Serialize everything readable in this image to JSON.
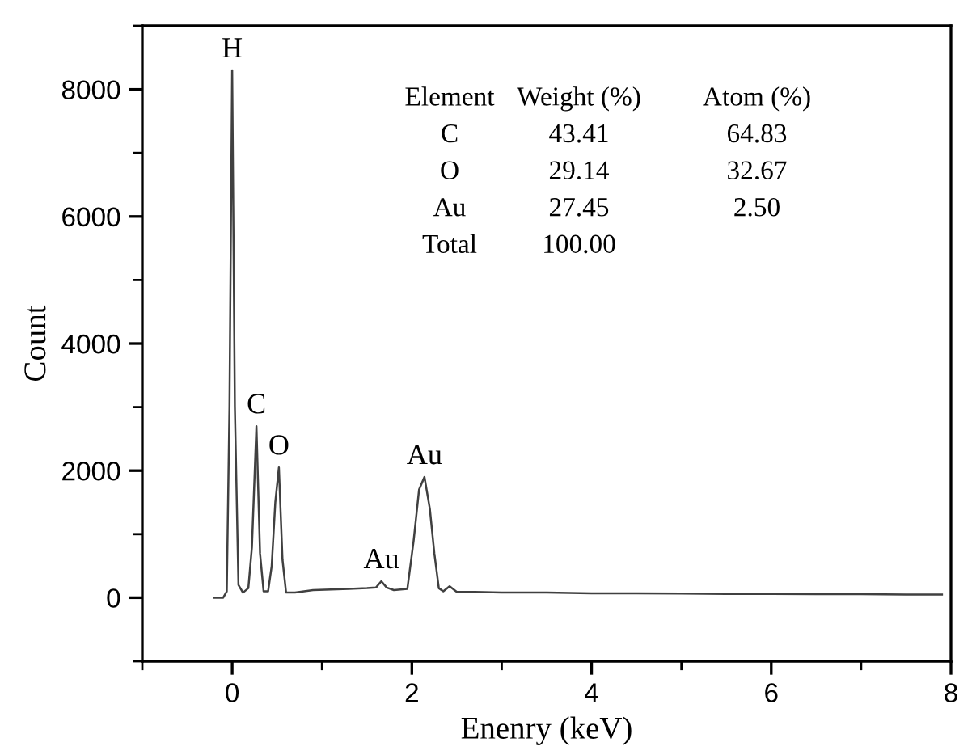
{
  "chart_data": {
    "type": "line",
    "xlabel": "Enenry (keV)",
    "ylabel": "Count",
    "xlim": [
      -1,
      8
    ],
    "ylim": [
      -1000,
      9000
    ],
    "xticks": [
      0,
      2,
      4,
      6,
      8
    ],
    "yticks": [
      0,
      2000,
      4000,
      6000,
      8000
    ],
    "grid": false,
    "legend": false,
    "marker": "none",
    "line_style": "solid",
    "series": [
      {
        "color": "#404040",
        "x": [
          -0.2,
          -0.1,
          -0.06,
          -0.03,
          0.0,
          0.03,
          0.07,
          0.12,
          0.18,
          0.22,
          0.27,
          0.31,
          0.35,
          0.4,
          0.44,
          0.48,
          0.52,
          0.56,
          0.6,
          0.7,
          0.9,
          1.1,
          1.3,
          1.5,
          1.6,
          1.66,
          1.72,
          1.8,
          1.95,
          2.02,
          2.08,
          2.14,
          2.2,
          2.25,
          2.3,
          2.35,
          2.42,
          2.5,
          2.7,
          3.0,
          3.5,
          4.0,
          4.5,
          5.0,
          5.5,
          6.0,
          6.5,
          7.0,
          7.5,
          7.9
        ],
        "values": [
          0,
          0,
          100,
          3000,
          8300,
          3000,
          200,
          80,
          150,
          800,
          2700,
          700,
          100,
          100,
          500,
          1500,
          2050,
          600,
          80,
          80,
          120,
          130,
          140,
          150,
          160,
          260,
          160,
          120,
          140,
          900,
          1700,
          1900,
          1400,
          700,
          150,
          100,
          180,
          90,
          90,
          80,
          80,
          70,
          70,
          65,
          60,
          60,
          55,
          55,
          50,
          50
        ]
      }
    ],
    "annotations": [
      {
        "text": "H",
        "x": 0.0,
        "y": 8300
      },
      {
        "text": "C",
        "x": 0.27,
        "y": 2700
      },
      {
        "text": "O",
        "x": 0.52,
        "y": 2050
      },
      {
        "text": "Au",
        "x": 1.66,
        "y": 260
      },
      {
        "text": "Au",
        "x": 2.14,
        "y": 1900
      },
      "Element",
      "Weight (%)",
      "Atom (%)",
      "C",
      "43.41",
      "64.83",
      "O",
      "29.14",
      "32.67",
      "Au",
      "27.45",
      "2.50",
      "Total",
      "100.00"
    ]
  }
}
